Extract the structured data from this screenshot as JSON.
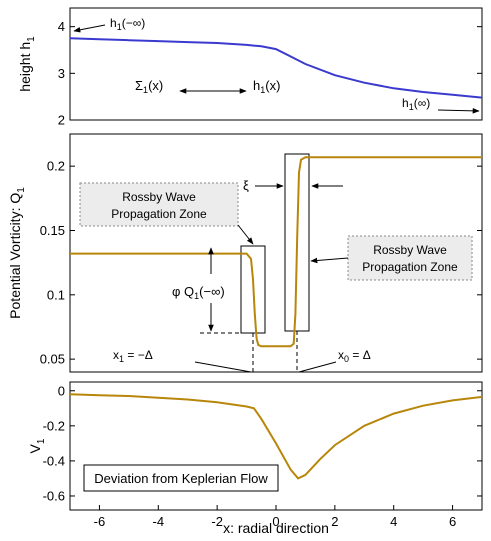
{
  "chart_data": [
    {
      "type": "line",
      "panel": "top",
      "xlim": [
        -7,
        7
      ],
      "ylim": [
        2,
        4.4
      ],
      "yticks": [
        "2",
        "3",
        "4"
      ],
      "ylabel": "height h",
      "ylabel_sub": "1",
      "series": [
        {
          "color": "#3a3acf",
          "x": [
            -7,
            -6,
            -5,
            -4,
            -3,
            -2,
            -1,
            -0.5,
            0,
            0.5,
            1,
            2,
            3,
            4,
            5,
            6,
            7
          ],
          "y": [
            3.75,
            3.73,
            3.71,
            3.69,
            3.67,
            3.65,
            3.61,
            3.58,
            3.52,
            3.36,
            3.2,
            2.96,
            2.8,
            2.68,
            2.6,
            2.54,
            2.48
          ]
        }
      ],
      "annotations": {
        "h_minus_inf": "h",
        "h_minus_inf_sub": "1",
        "h_minus_inf_rest": "(−∞)",
        "sigma": "Σ",
        "sigma_sub": "1",
        "sigma_rest": "(x)",
        "h_x": "h",
        "h_x_sub": "1",
        "h_x_rest": "(x)",
        "h_inf": "h",
        "h_inf_sub": "1",
        "h_inf_rest": "(∞)"
      }
    },
    {
      "type": "line",
      "panel": "middle",
      "xlim": [
        -7,
        7
      ],
      "ylim": [
        0.04,
        0.225
      ],
      "yticks": [
        "0.05",
        "0.1",
        "0.15",
        "0.2"
      ],
      "ylabel": "Potential Vorticity: Q",
      "ylabel_sub": "1",
      "series": [
        {
          "color": "#b8860b",
          "x": [
            -7,
            -1.0,
            -0.85,
            -0.78,
            -0.72,
            -0.66,
            -0.6,
            -0.5,
            0,
            0.5,
            0.6,
            0.66,
            0.72,
            0.78,
            0.85,
            1.0,
            7
          ],
          "y": [
            0.132,
            0.132,
            0.128,
            0.112,
            0.085,
            0.066,
            0.061,
            0.06,
            0.06,
            0.06,
            0.062,
            0.085,
            0.145,
            0.195,
            0.205,
            0.207,
            0.207
          ]
        }
      ],
      "annotations": {
        "rossby_left": [
          "Rossby Wave",
          "Propagation Zone"
        ],
        "rossby_right": [
          "Rossby Wave",
          "Propagation Zone"
        ],
        "xi": "ξ",
        "phi": "φ Q",
        "phi_sub": "1",
        "phi_rest": "(−∞)",
        "x1": "x",
        "x1_sub": "1",
        "x1_rest": " = −Δ",
        "x0": "x",
        "x0_sub": "0",
        "x0_rest": " = Δ"
      }
    },
    {
      "type": "line",
      "panel": "bottom",
      "xlim": [
        -7,
        7
      ],
      "ylim": [
        -0.68,
        0.05
      ],
      "yticks": [
        "-0.6",
        "-0.4",
        "-0.2",
        "0"
      ],
      "xticks": [
        "-6",
        "-4",
        "-2",
        "0",
        "2",
        "4",
        "6"
      ],
      "xlabel": "x: radial direction",
      "ylabel": "V",
      "ylabel_sub": "1",
      "series": [
        {
          "color": "#b8860b",
          "x": [
            -7,
            -6,
            -5,
            -4,
            -3,
            -2,
            -1,
            -0.75,
            -0.5,
            0,
            0.5,
            0.75,
            1,
            1.5,
            2,
            3,
            4,
            5,
            6,
            7
          ],
          "y": [
            -0.02,
            -0.025,
            -0.03,
            -0.04,
            -0.05,
            -0.065,
            -0.09,
            -0.1,
            -0.16,
            -0.3,
            -0.45,
            -0.5,
            -0.48,
            -0.39,
            -0.31,
            -0.2,
            -0.13,
            -0.085,
            -0.055,
            -0.035
          ]
        }
      ],
      "annotations": {
        "deviation": "Deviation from Keplerian Flow"
      }
    }
  ]
}
